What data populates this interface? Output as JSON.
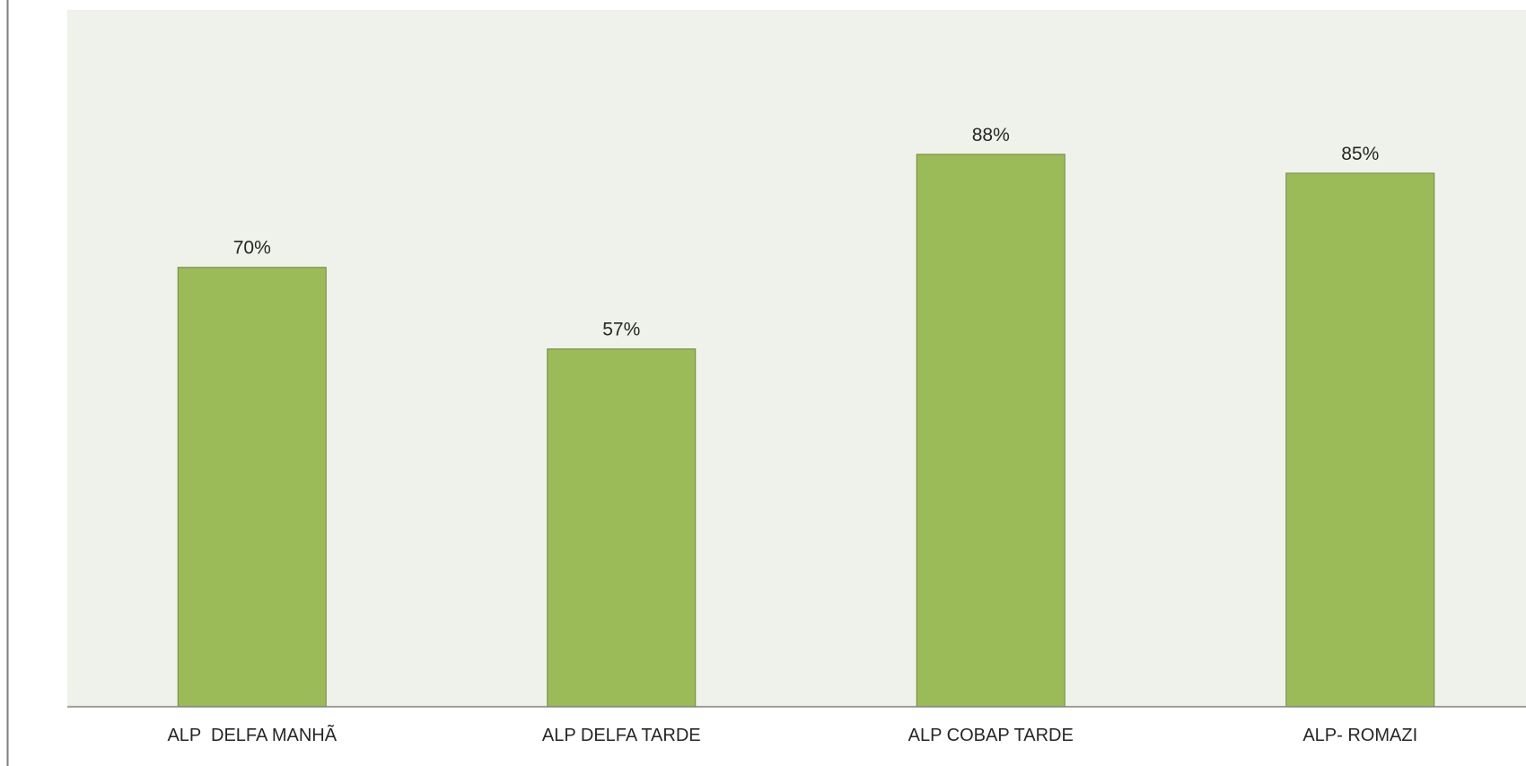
{
  "chart_data": {
    "type": "bar",
    "categories": [
      "ALP  DELFA MANHÃ",
      "ALP DELFA TARDE",
      "ALP COBAP TARDE",
      "ALP- ROMAZI"
    ],
    "values": [
      70,
      57,
      88,
      85
    ],
    "value_labels": [
      "70%",
      "57%",
      "88%",
      "85%"
    ],
    "unit": "%",
    "ylim": [
      0,
      100
    ],
    "grid": false,
    "legend": "none",
    "colors": {
      "bar": "#9BBB59",
      "bar_border": "#71893F",
      "plot_background": "#EFF2EA",
      "axis": "#808080"
    }
  }
}
